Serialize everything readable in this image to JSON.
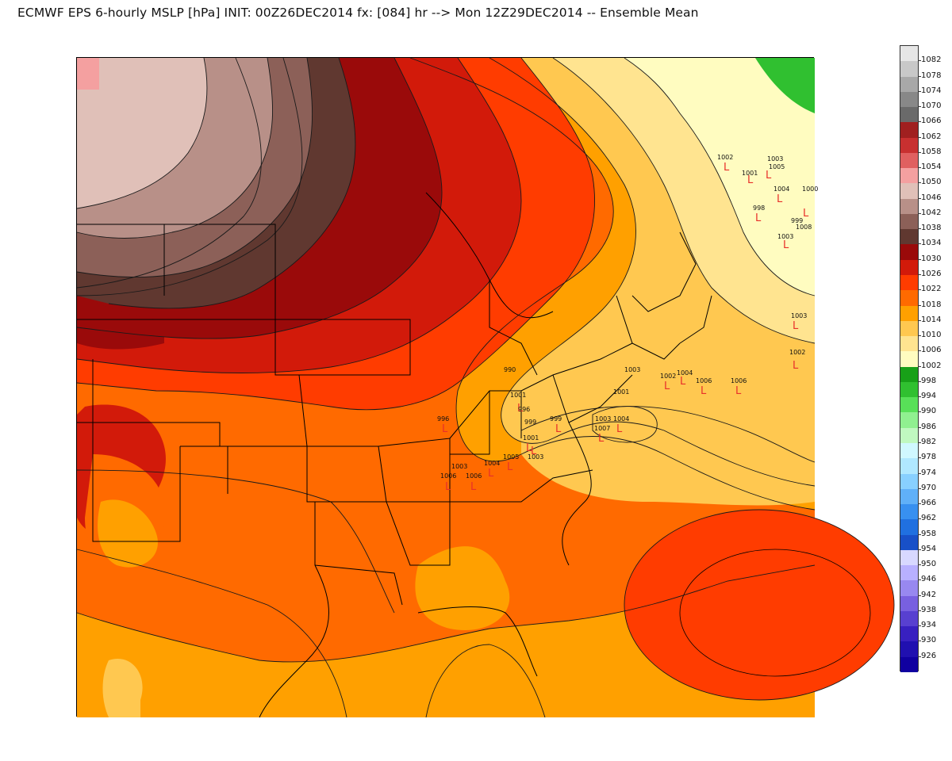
{
  "title": "ECMWF EPS 6-hourly MSLP [hPa] INIT: 00Z26DEC2014 fx: [084] hr --> Mon 12Z29DEC2014 -- Ensemble Mean",
  "legend": [
    {
      "label": "1082",
      "color": "#e6e6e6"
    },
    {
      "label": "1078",
      "color": "#c8c8c8"
    },
    {
      "label": "1074",
      "color": "#a8a8a8"
    },
    {
      "label": "1070",
      "color": "#888888"
    },
    {
      "label": "1066",
      "color": "#6a6a6a"
    },
    {
      "label": "1062",
      "color": "#a02020"
    },
    {
      "label": "1058",
      "color": "#c83030"
    },
    {
      "label": "1054",
      "color": "#e06060"
    },
    {
      "label": "1050",
      "color": "#f4a0a0"
    },
    {
      "label": "1046",
      "color": "#e0c0b8"
    },
    {
      "label": "1042",
      "color": "#b89088"
    },
    {
      "label": "1038",
      "color": "#8c6058"
    },
    {
      "label": "1034",
      "color": "#603830"
    },
    {
      "label": "1030",
      "color": "#9a0a0a"
    },
    {
      "label": "1026",
      "color": "#d21a0a"
    },
    {
      "label": "1022",
      "color": "#ff3c00"
    },
    {
      "label": "1018",
      "color": "#ff6a00"
    },
    {
      "label": "1014",
      "color": "#ffa000"
    },
    {
      "label": "1010",
      "color": "#ffc850"
    },
    {
      "label": "1006",
      "color": "#ffe490"
    },
    {
      "label": "1002",
      "color": "#fffcc0"
    },
    {
      "label": "998",
      "color": "#18a018"
    },
    {
      "label": "994",
      "color": "#30c030"
    },
    {
      "label": "990",
      "color": "#58e058"
    },
    {
      "label": "986",
      "color": "#90f090"
    },
    {
      "label": "982",
      "color": "#c0f8c0"
    },
    {
      "label": "978",
      "color": "#d0f8ff"
    },
    {
      "label": "974",
      "color": "#b0e8ff"
    },
    {
      "label": "970",
      "color": "#88d0ff"
    },
    {
      "label": "966",
      "color": "#60b0f8"
    },
    {
      "label": "962",
      "color": "#3890f0"
    },
    {
      "label": "958",
      "color": "#2070e0"
    },
    {
      "label": "954",
      "color": "#1850c8"
    },
    {
      "label": "950",
      "color": "#d8d8ff"
    },
    {
      "label": "946",
      "color": "#b8b0ff"
    },
    {
      "label": "942",
      "color": "#9888f0"
    },
    {
      "label": "938",
      "color": "#7860e0"
    },
    {
      "label": "934",
      "color": "#5840d0"
    },
    {
      "label": "930",
      "color": "#3820c0"
    },
    {
      "label": "926",
      "color": "#2010b0"
    },
    {
      "label": "",
      "color": "#1000a0"
    }
  ],
  "lows": [
    {
      "value": "1002"
    },
    {
      "value": "1003"
    },
    {
      "value": "1001"
    },
    {
      "value": "1005"
    },
    {
      "value": "1004"
    },
    {
      "value": "1000"
    },
    {
      "value": "998"
    },
    {
      "value": "999"
    },
    {
      "value": "1003"
    },
    {
      "value": "1003"
    },
    {
      "value": "1002"
    },
    {
      "value": "1003"
    },
    {
      "value": "1002"
    },
    {
      "value": "1004"
    },
    {
      "value": "1006"
    },
    {
      "value": "1006"
    },
    {
      "value": "1001"
    },
    {
      "value": "990"
    },
    {
      "value": "1001"
    },
    {
      "value": "996"
    },
    {
      "value": "999"
    },
    {
      "value": "996"
    },
    {
      "value": "999"
    },
    {
      "value": "1003"
    },
    {
      "value": "1004"
    },
    {
      "value": "1007"
    },
    {
      "value": "1001"
    },
    {
      "value": "1003"
    },
    {
      "value": "1005"
    },
    {
      "value": "1004"
    },
    {
      "value": "1003"
    },
    {
      "value": "1006"
    },
    {
      "value": "1006"
    },
    {
      "value": "1008"
    }
  ]
}
